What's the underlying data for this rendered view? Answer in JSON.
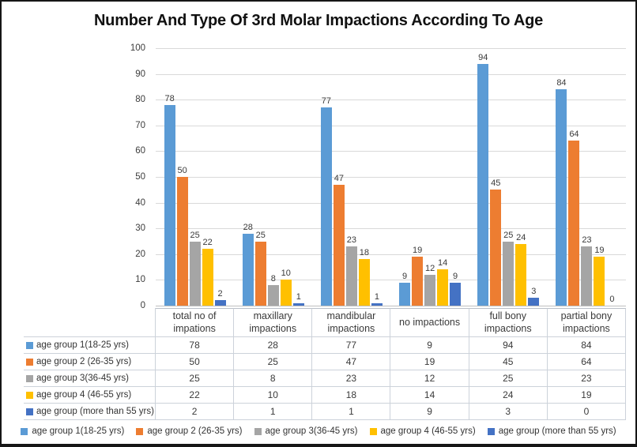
{
  "title": "Number And Type Of 3rd Molar Impactions According To Age",
  "chart_data": {
    "type": "bar",
    "title": "Number And Type Of 3rd Molar Impactions According To Age",
    "categories": [
      "total no of impations",
      "maxillary impactions",
      "mandibular impactions",
      "no impactions",
      "full bony impactions",
      "partial bony impactions"
    ],
    "series": [
      {
        "name": "age group 1(18-25 yrs)",
        "color": "#5B9BD5",
        "values": [
          78,
          28,
          77,
          9,
          94,
          84
        ]
      },
      {
        "name": "age group 2 (26-35 yrs)",
        "color": "#ED7D31",
        "values": [
          50,
          25,
          47,
          19,
          45,
          64
        ]
      },
      {
        "name": "age group 3(36-45 yrs)",
        "color": "#A5A5A5",
        "values": [
          25,
          8,
          23,
          12,
          25,
          23
        ]
      },
      {
        "name": "age group 4 (46-55 yrs)",
        "color": "#FFC000",
        "values": [
          22,
          10,
          18,
          14,
          24,
          19
        ]
      },
      {
        "name": "age group (more than 55 yrs)",
        "color": "#4472C4",
        "values": [
          2,
          1,
          1,
          9,
          3,
          0
        ]
      }
    ],
    "ylim": [
      0,
      100
    ],
    "ytick_step": 10,
    "yticks": [
      0,
      10,
      20,
      30,
      40,
      50,
      60,
      70,
      80,
      90,
      100
    ],
    "grid": true,
    "data_labels": true,
    "legend_position": "bottom",
    "data_table_shown": true,
    "colors": {
      "gridline": "#d9d9d9",
      "axis_line": "#bfbfbf",
      "table_border": "#ccd2da",
      "text": "#3a3a3a",
      "title_text": "#111111"
    }
  }
}
